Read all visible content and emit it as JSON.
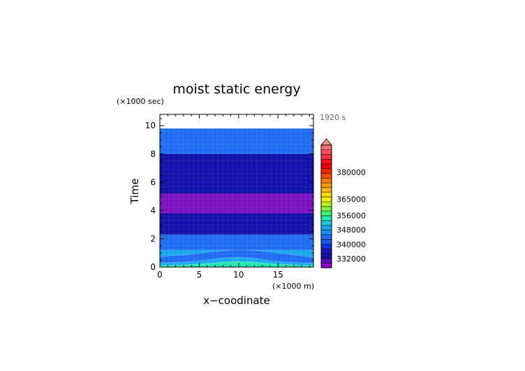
{
  "chart_data": {
    "type": "heatmap",
    "title": "moist static energy",
    "time_label": "1920 s",
    "xlabel": "x−coodinate",
    "xunit": "(×1000 m)",
    "ylabel": "Time",
    "yunit": "(×1000 sec)",
    "xlim": [
      0,
      19.5
    ],
    "ylim": [
      0,
      10.8
    ],
    "xticks": [
      "0",
      "5",
      "10",
      "15"
    ],
    "yticks": [
      "0",
      "2",
      "4",
      "6",
      "8",
      "10"
    ],
    "data_top": 9.8,
    "bands": [
      {
        "from": 8.0,
        "to": 9.8,
        "color": "#1f6cf2"
      },
      {
        "from": 5.2,
        "to": 8.0,
        "color": "#1010a8"
      },
      {
        "from": 3.8,
        "to": 5.2,
        "color": "#7a10c0"
      },
      {
        "from": 2.3,
        "to": 3.8,
        "color": "#1010a8"
      },
      {
        "from": 1.2,
        "to": 2.3,
        "color": "#1f6cf2"
      },
      {
        "from": 0.0,
        "to": 1.2,
        "color": "#18a8f0"
      }
    ],
    "contours": [
      {
        "color": "#1f6cf2",
        "x": [
          0,
          3,
          6,
          9,
          10,
          12,
          15,
          18,
          19.5
        ],
        "y": [
          0.75,
          0.85,
          1.05,
          1.2,
          1.22,
          1.18,
          1.0,
          0.8,
          0.7
        ]
      },
      {
        "color": "#18a8f0",
        "x": [
          0,
          3,
          6,
          8,
          10,
          12,
          14,
          17,
          19.5
        ],
        "y": [
          0.3,
          0.35,
          0.5,
          0.65,
          0.7,
          0.62,
          0.45,
          0.32,
          0.28
        ]
      },
      {
        "color": "#20e8b0",
        "x": [
          0,
          3,
          6,
          8,
          10,
          12,
          14,
          17,
          19.5
        ],
        "y": [
          0.12,
          0.15,
          0.25,
          0.35,
          0.4,
          0.35,
          0.25,
          0.15,
          0.12
        ]
      }
    ],
    "colorbar": {
      "labels": [
        "380000",
        "365000",
        "356000",
        "348000",
        "340000",
        "332000"
      ],
      "label_values": [
        380000,
        365000,
        356000,
        348000,
        340000,
        332000
      ],
      "levels": [
        {
          "color": "#8a00c8"
        },
        {
          "color": "#5a10c0"
        },
        {
          "color": "#10109a"
        },
        {
          "color": "#1818b8"
        },
        {
          "color": "#1030d8"
        },
        {
          "color": "#1a58ee"
        },
        {
          "color": "#1f6cf2"
        },
        {
          "color": "#1890f2"
        },
        {
          "color": "#18a8f0"
        },
        {
          "color": "#20c8e0"
        },
        {
          "color": "#20e8b0"
        },
        {
          "color": "#40f070"
        },
        {
          "color": "#80f040"
        },
        {
          "color": "#c0f020"
        },
        {
          "color": "#f0f000"
        },
        {
          "color": "#f8d800"
        },
        {
          "color": "#f8b800"
        },
        {
          "color": "#f89800"
        },
        {
          "color": "#f87800"
        },
        {
          "color": "#f85000"
        },
        {
          "color": "#f82800"
        },
        {
          "color": "#f00000"
        },
        {
          "color": "#f81020"
        },
        {
          "color": "#f83040"
        },
        {
          "color": "#f85060"
        },
        {
          "color": "#f87070"
        }
      ],
      "triangle_color": "#f89090"
    }
  }
}
